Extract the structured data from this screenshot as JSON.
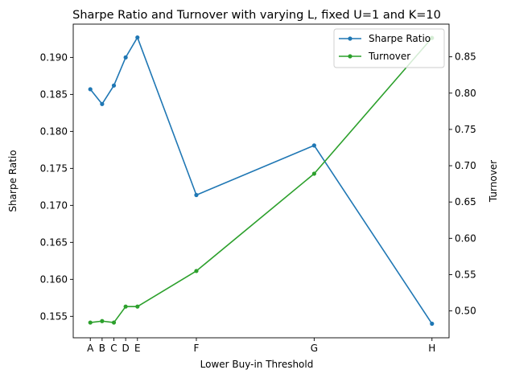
{
  "chart_data": {
    "type": "line",
    "title": "Sharpe Ratio and Turnover with varying L, fixed U=1 and K=10",
    "xlabel": "Lower Buy-in Threshold",
    "ylabel": "Sharpe Ratio",
    "ylabel_right": "Turnover",
    "categories": [
      "A",
      "B",
      "C",
      "D",
      "E",
      "F",
      "G",
      "H"
    ],
    "x": [
      0.0,
      0.1,
      0.2,
      0.3,
      0.4,
      0.9,
      1.9,
      2.9
    ],
    "xlim": [
      -0.145,
      3.045
    ],
    "ylim": [
      0.1521,
      0.1945
    ],
    "ylim_right": [
      0.463,
      0.895
    ],
    "yticks": [
      0.155,
      0.16,
      0.165,
      0.17,
      0.175,
      0.18,
      0.185,
      0.19
    ],
    "yticks_right": [
      0.5,
      0.55,
      0.6,
      0.65,
      0.7,
      0.75,
      0.8,
      0.85
    ],
    "ytick_labels": [
      "0.155",
      "0.160",
      "0.165",
      "0.170",
      "0.175",
      "0.180",
      "0.185",
      "0.190"
    ],
    "ytick_labels_right": [
      "0.50",
      "0.55",
      "0.60",
      "0.65",
      "0.70",
      "0.75",
      "0.80",
      "0.85"
    ],
    "series": [
      {
        "name": "Sharpe Ratio",
        "axis": "left",
        "color": "#1f77b4",
        "values": [
          0.1857,
          0.1837,
          0.1862,
          0.19,
          0.1927,
          0.1714,
          0.1781,
          0.154
        ]
      },
      {
        "name": "Turnover",
        "axis": "right",
        "color": "#2ca02c",
        "values": [
          0.484,
          0.486,
          0.484,
          0.506,
          0.506,
          0.555,
          0.689,
          0.876
        ]
      }
    ],
    "legend_position": "top-right",
    "grid": false
  }
}
